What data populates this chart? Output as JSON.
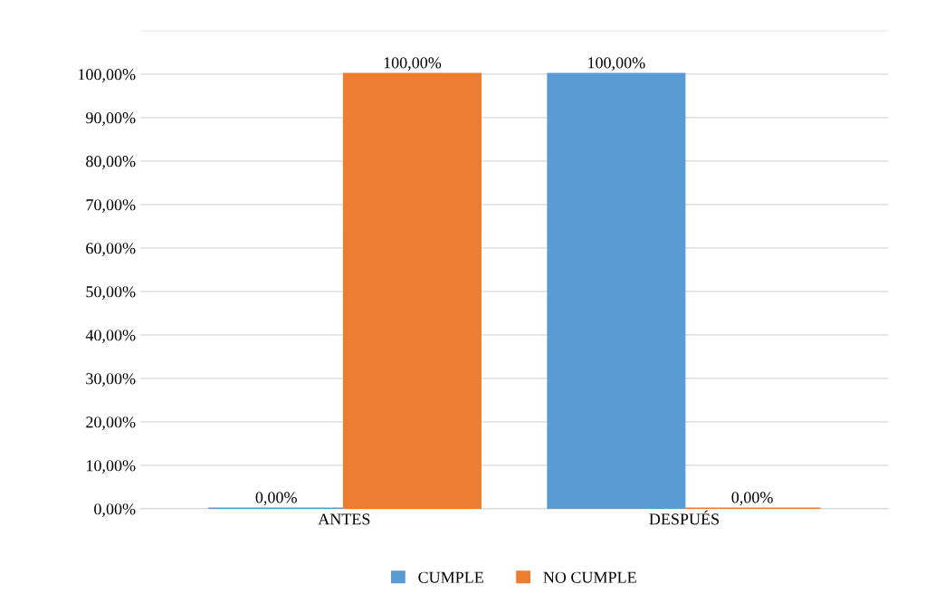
{
  "chart_data": {
    "type": "bar",
    "categories": [
      "ANTES",
      "DESPUÉS"
    ],
    "series": [
      {
        "name": "CUMPLE",
        "color": "#5b9bd5",
        "values": [
          0,
          100
        ],
        "value_labels": [
          "0,00%",
          "100,00%"
        ]
      },
      {
        "name": "NO CUMPLE",
        "color": "#ed7d31",
        "values": [
          100,
          0
        ],
        "value_labels": [
          "100,00%",
          "0,00%"
        ]
      }
    ],
    "ylim": [
      0,
      110
    ],
    "yticks": [
      {
        "value": 0,
        "label": "0,00%"
      },
      {
        "value": 10,
        "label": "10,00%"
      },
      {
        "value": 20,
        "label": "20,00%"
      },
      {
        "value": 30,
        "label": "30,00%"
      },
      {
        "value": 40,
        "label": "40,00%"
      },
      {
        "value": 50,
        "label": "50,00%"
      },
      {
        "value": 60,
        "label": "60,00%"
      },
      {
        "value": 70,
        "label": "70,00%"
      },
      {
        "value": 80,
        "label": "80,00%"
      },
      {
        "value": 90,
        "label": "90,00%"
      },
      {
        "value": 100,
        "label": "100,00%"
      },
      {
        "value": 110,
        "label": null
      }
    ],
    "grid": "y",
    "legend": "bottom"
  }
}
